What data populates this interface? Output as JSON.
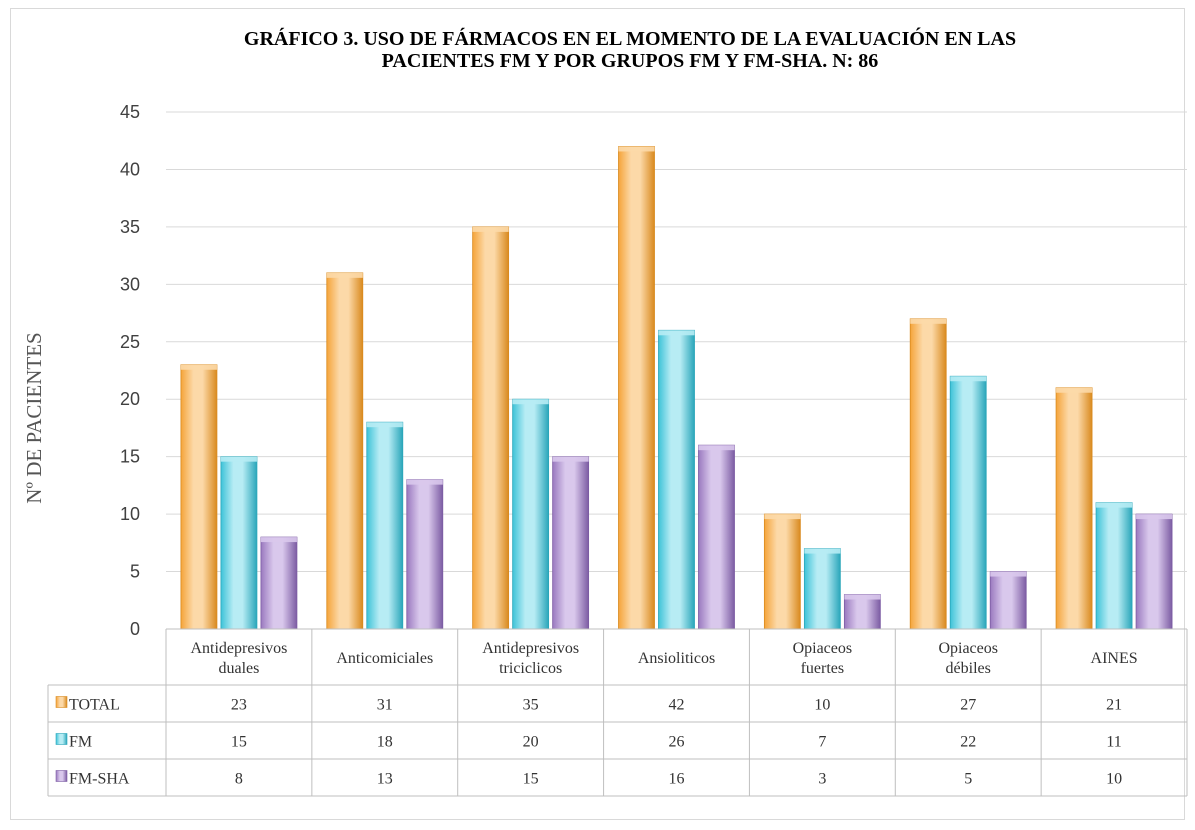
{
  "chart_data": {
    "type": "bar",
    "title_lines": [
      "GRÁFICO 3. USO DE FÁRMACOS EN EL MOMENTO DE LA EVALUACIÓN EN LAS",
      "PACIENTES FM Y POR GRUPOS FM Y FM-SHA. N: 86"
    ],
    "ylabel": "Nº DE PACIENTES",
    "xlabel": "",
    "ylim": [
      0,
      45
    ],
    "yticks": [
      0,
      5,
      10,
      15,
      20,
      25,
      30,
      35,
      40,
      45
    ],
    "categories": [
      [
        "Antidepresivos",
        "duales"
      ],
      [
        "Anticomiciales"
      ],
      [
        "Antidepresivos",
        "triciclicos"
      ],
      [
        "Ansioliticos"
      ],
      [
        "Opiaceos",
        "fuertes"
      ],
      [
        "Opiaceos",
        "débiles"
      ],
      [
        "AINES"
      ]
    ],
    "series": [
      {
        "name": "TOTAL",
        "values": [
          23,
          31,
          35,
          42,
          10,
          27,
          21
        ],
        "color": "#f5a43a",
        "light": "#fcd9a8",
        "dark": "#d98a1f"
      },
      {
        "name": "FM",
        "values": [
          15,
          18,
          20,
          26,
          7,
          22,
          11
        ],
        "color": "#3ec3d8",
        "light": "#b7ecf4",
        "dark": "#2aa6ba"
      },
      {
        "name": "FM-SHA",
        "values": [
          8,
          13,
          15,
          16,
          3,
          5,
          10
        ],
        "color": "#9a79bf",
        "light": "#d9c8ec",
        "dark": "#7c5ca3"
      }
    ],
    "grid": true,
    "legend": "data-table"
  }
}
